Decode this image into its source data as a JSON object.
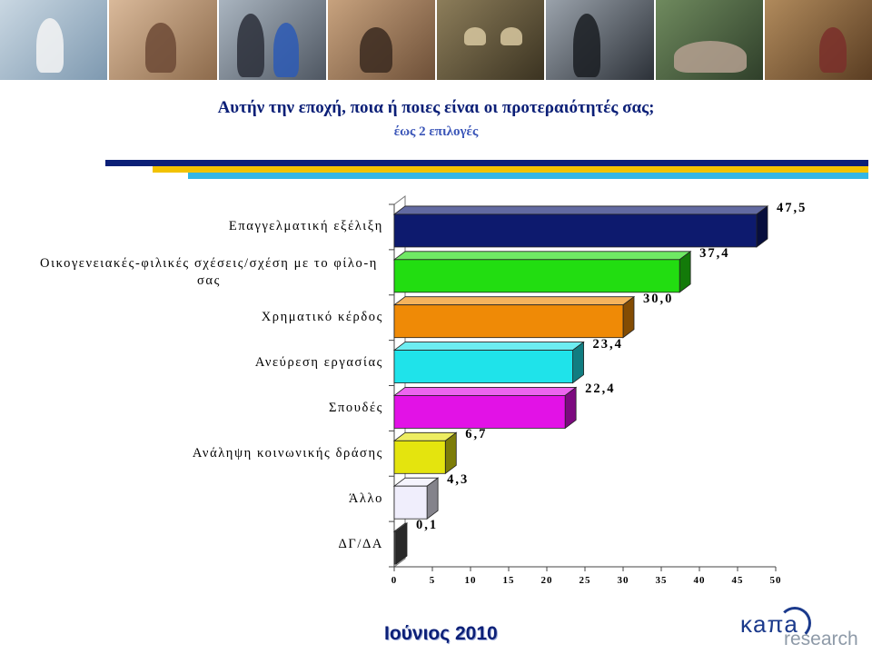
{
  "header": {
    "title": "Αυτήν την εποχή, ποια ή ποιες είναι οι προτεραιότητές σας;",
    "subtitle": "έως 2 επιλογές"
  },
  "colors": {
    "title": "#0b1f77",
    "stripe_navy": "#0b1f77",
    "stripe_yellow": "#f2c200",
    "stripe_cyan": "#34b6e4"
  },
  "chart_data": {
    "type": "bar",
    "orientation": "horizontal",
    "categories": [
      "Επαγγελματική εξέλιξη",
      "Οικογενειακές-φιλικές σχέσεις/σχέση με το φίλο-η σας",
      "Χρηματικό κέρδος",
      "Ανεύρεση εργασίας",
      "Σπουδές",
      "Ανάληψη κοινωνικής δράσης",
      "Άλλο",
      "ΔΓ/ΔΑ"
    ],
    "values": [
      47.5,
      37.4,
      30.0,
      23.4,
      22.4,
      6.7,
      4.3,
      0.1
    ],
    "value_labels": [
      "47,5",
      "37,4",
      "30,0",
      "23,4",
      "22,4",
      "6,7",
      "4,3",
      "0,1"
    ],
    "bar_colors": [
      "#0d1a6e",
      "#22dd11",
      "#ef8a06",
      "#1fe3ea",
      "#e212e6",
      "#e4e40e",
      "#f0eefc",
      "#4a4a4a"
    ],
    "xlim": [
      0,
      50
    ],
    "xticks": [
      0,
      5,
      10,
      15,
      20,
      25,
      30,
      35,
      40,
      45,
      50
    ],
    "grid": false,
    "legend": "none"
  },
  "footer": {
    "date": "Ιούνιος 2010",
    "logo_main": "κaπa",
    "logo_sub": "research"
  }
}
